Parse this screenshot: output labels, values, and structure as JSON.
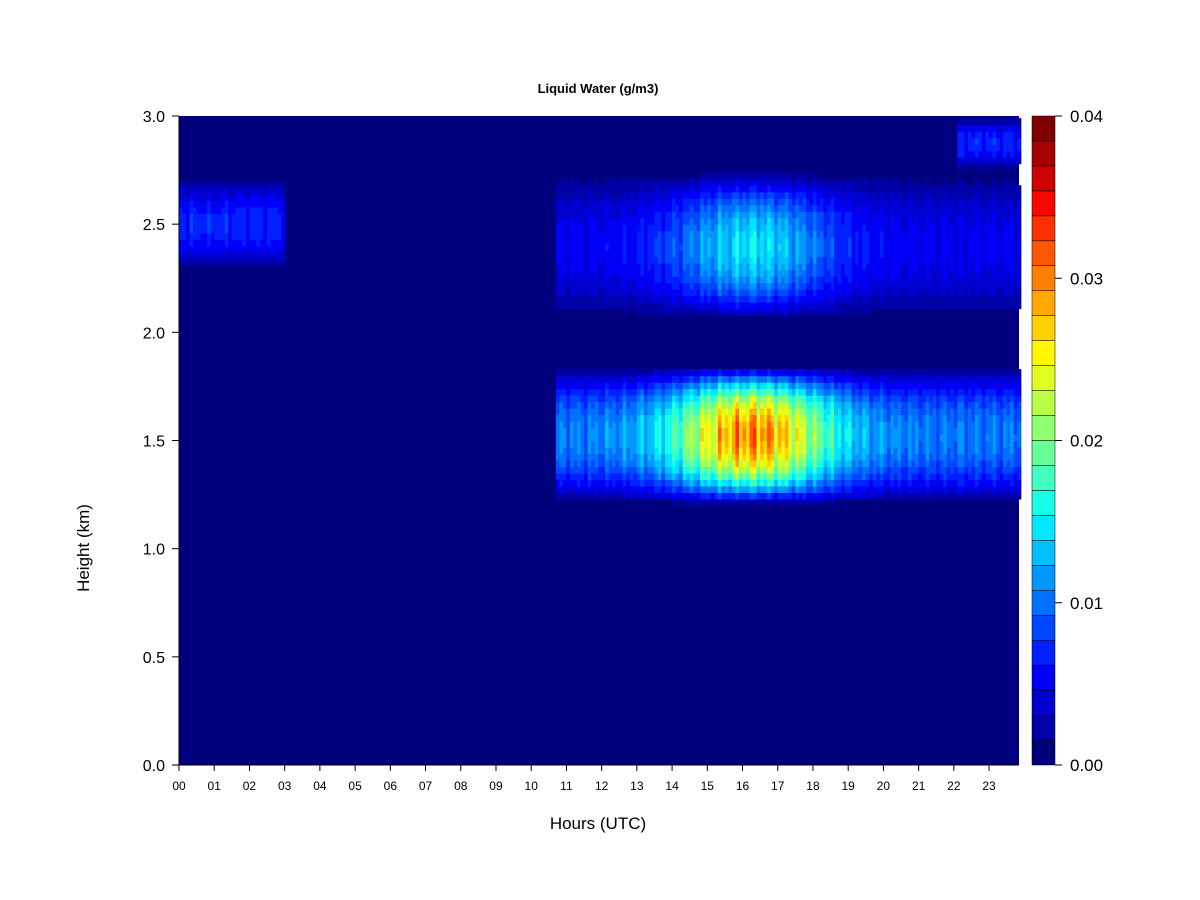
{
  "chart_data": {
    "type": "heatmap",
    "title": "Liquid Water (g/m3)",
    "xlabel": "Hours (UTC)",
    "ylabel": "Height (km)",
    "x_ticks": [
      "00",
      "01",
      "02",
      "03",
      "04",
      "05",
      "06",
      "07",
      "08",
      "09",
      "10",
      "11",
      "12",
      "13",
      "14",
      "15",
      "16",
      "17",
      "18",
      "19",
      "20",
      "21",
      "22",
      "23"
    ],
    "xlim": [
      0,
      23.85
    ],
    "y_ticks": [
      "0.0",
      "0.5",
      "1.0",
      "1.5",
      "2.0",
      "2.5",
      "3.0"
    ],
    "ylim": [
      0,
      3.0
    ],
    "colorbar": {
      "ticks": [
        "0.00",
        "0.01",
        "0.02",
        "0.03",
        "0.04"
      ],
      "range": [
        0,
        0.04
      ],
      "levels": 20,
      "colors": [
        "#00007F",
        "#0000A8",
        "#0000D0",
        "#0000F8",
        "#0020FF",
        "#0048FF",
        "#0070FF",
        "#0098FF",
        "#00C0FF",
        "#00E8FF",
        "#18FFE8",
        "#40FFC0",
        "#68FF98",
        "#90FF70",
        "#B8FF48",
        "#E0FF20",
        "#FFF800",
        "#FFD000",
        "#FFA800",
        "#FF8000",
        "#FF5800",
        "#FF3000",
        "#F80800",
        "#D00000",
        "#A80000",
        "#800000"
      ]
    },
    "cloud_layers": [
      {
        "name": "upper",
        "x_range": [
          0,
          3.0
        ],
        "height_range": [
          2.28,
          2.72
        ],
        "peak_value": 0.009
      },
      {
        "name": "upper",
        "x_range": [
          10.7,
          23.85
        ],
        "height_range": [
          2.05,
          2.75
        ],
        "peak_value": 0.017
      },
      {
        "name": "top",
        "x_range": [
          22.1,
          23.85
        ],
        "height_range": [
          2.75,
          3.0
        ],
        "peak_value": 0.009
      },
      {
        "name": "lower",
        "x_range": [
          10.7,
          23.85
        ],
        "height_range": [
          1.2,
          1.85
        ],
        "peak_value": 0.035
      }
    ]
  }
}
